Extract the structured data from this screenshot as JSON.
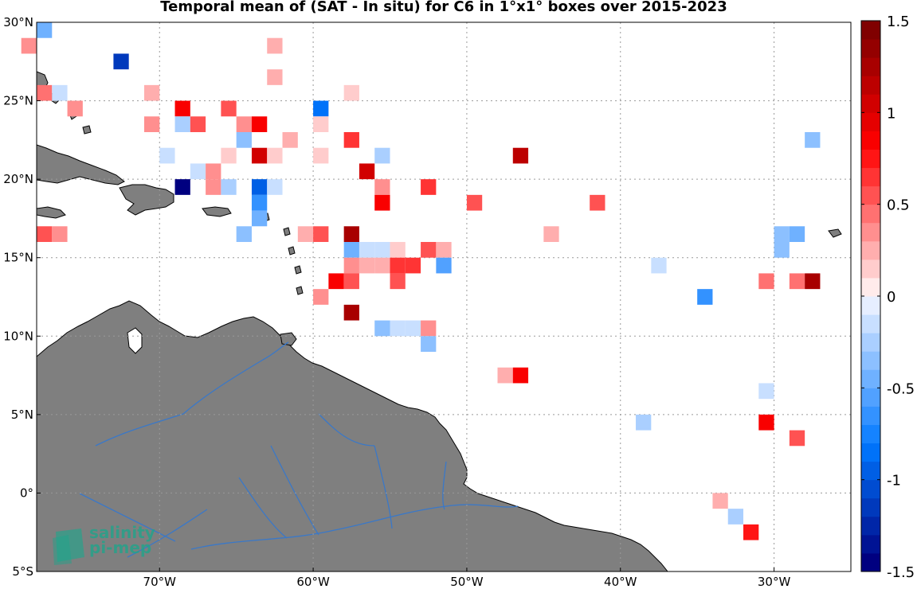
{
  "title": "Temporal mean of (SAT - In situ) for C6 in 1°x1° boxes over 2015-2023",
  "map": {
    "lon_range": [
      -78,
      -25
    ],
    "lat_range": [
      -5,
      30
    ],
    "lat_ticks": [
      {
        "value": 30,
        "label": "30°N"
      },
      {
        "value": 25,
        "label": "25°N"
      },
      {
        "value": 20,
        "label": "20°N"
      },
      {
        "value": 15,
        "label": "15°N"
      },
      {
        "value": 10,
        "label": "10°N"
      },
      {
        "value": 5,
        "label": "5°N"
      },
      {
        "value": 0,
        "label": "0°"
      },
      {
        "value": -5,
        "label": "5°S"
      }
    ],
    "lon_ticks": [
      {
        "value": -70,
        "label": "70°W"
      },
      {
        "value": -60,
        "label": "60°W"
      },
      {
        "value": -50,
        "label": "50°W"
      },
      {
        "value": -40,
        "label": "40°W"
      },
      {
        "value": -30,
        "label": "30°W"
      }
    ],
    "grid": true,
    "colors": {
      "land": "#7f7f7f",
      "rivers": "#3a78c8",
      "ocean": "#ffffff"
    }
  },
  "colorbar": {
    "range": [
      -1.5,
      1.5
    ],
    "levels": 30,
    "ticks": [
      {
        "value": 1.5,
        "label": "1.5"
      },
      {
        "value": 1,
        "label": "1"
      },
      {
        "value": 0.5,
        "label": "0.5"
      },
      {
        "value": 0,
        "label": "0"
      },
      {
        "value": -0.5,
        "label": "-0.5"
      },
      {
        "value": -1,
        "label": "-1"
      },
      {
        "value": -1.5,
        "label": "-1.5"
      }
    ]
  },
  "chart_data": {
    "type": "heatmap",
    "title": "Temporal mean of (SAT - In situ) for C6 in 1°x1° boxes over 2015-2023",
    "cell_size_deg": 1,
    "value_range": [
      -1.5,
      1.5
    ],
    "cells": [
      {
        "lon": -77.5,
        "lat": 29.5,
        "v": -0.45
      },
      {
        "lon": -78.5,
        "lat": 28.5,
        "v": 0.35
      },
      {
        "lon": -62.5,
        "lat": 28.5,
        "v": 0.25
      },
      {
        "lon": -72.5,
        "lat": 27.5,
        "v": -1.15
      },
      {
        "lon": -62.5,
        "lat": 26.5,
        "v": 0.25
      },
      {
        "lon": -77.5,
        "lat": 25.5,
        "v": 0.4
      },
      {
        "lon": -76.5,
        "lat": 25.5,
        "v": -0.1
      },
      {
        "lon": -70.5,
        "lat": 25.5,
        "v": 0.25
      },
      {
        "lon": -57.5,
        "lat": 25.5,
        "v": 0.15
      },
      {
        "lon": -75.5,
        "lat": 24.5,
        "v": 0.35
      },
      {
        "lon": -68.5,
        "lat": 24.5,
        "v": 0.85
      },
      {
        "lon": -65.5,
        "lat": 24.5,
        "v": 0.55
      },
      {
        "lon": -59.5,
        "lat": 24.5,
        "v": -0.8
      },
      {
        "lon": -70.5,
        "lat": 23.5,
        "v": 0.3
      },
      {
        "lon": -68.5,
        "lat": 23.5,
        "v": -0.25
      },
      {
        "lon": -67.5,
        "lat": 23.5,
        "v": 0.55
      },
      {
        "lon": -64.5,
        "lat": 23.5,
        "v": 0.35
      },
      {
        "lon": -63.5,
        "lat": 23.5,
        "v": 0.8
      },
      {
        "lon": -59.5,
        "lat": 23.5,
        "v": 0.15
      },
      {
        "lon": -64.5,
        "lat": 22.5,
        "v": -0.3
      },
      {
        "lon": -61.5,
        "lat": 22.5,
        "v": 0.2
      },
      {
        "lon": -57.5,
        "lat": 22.5,
        "v": 0.65
      },
      {
        "lon": -27.5,
        "lat": 22.5,
        "v": -0.35
      },
      {
        "lon": -69.5,
        "lat": 21.5,
        "v": -0.15
      },
      {
        "lon": -65.5,
        "lat": 21.5,
        "v": 0.15
      },
      {
        "lon": -63.5,
        "lat": 21.5,
        "v": 1.05
      },
      {
        "lon": -62.5,
        "lat": 21.5,
        "v": 0.15
      },
      {
        "lon": -59.5,
        "lat": 21.5,
        "v": 0.15
      },
      {
        "lon": -55.5,
        "lat": 21.5,
        "v": -0.25
      },
      {
        "lon": -46.5,
        "lat": 21.5,
        "v": 1.15
      },
      {
        "lon": -67.5,
        "lat": 20.5,
        "v": -0.15
      },
      {
        "lon": -66.5,
        "lat": 20.5,
        "v": 0.35
      },
      {
        "lon": -56.5,
        "lat": 20.5,
        "v": 1.05
      },
      {
        "lon": -68.5,
        "lat": 19.5,
        "v": -1.5
      },
      {
        "lon": -66.5,
        "lat": 19.5,
        "v": 0.3
      },
      {
        "lon": -65.5,
        "lat": 19.5,
        "v": -0.25
      },
      {
        "lon": -63.5,
        "lat": 19.5,
        "v": -0.9
      },
      {
        "lon": -62.5,
        "lat": 19.5,
        "v": -0.1
      },
      {
        "lon": -55.5,
        "lat": 19.5,
        "v": 0.3
      },
      {
        "lon": -52.5,
        "lat": 19.5,
        "v": 0.6
      },
      {
        "lon": -63.5,
        "lat": 18.5,
        "v": -0.65
      },
      {
        "lon": -55.5,
        "lat": 18.5,
        "v": 0.85
      },
      {
        "lon": -49.5,
        "lat": 18.5,
        "v": 0.55
      },
      {
        "lon": -41.5,
        "lat": 18.5,
        "v": 0.55
      },
      {
        "lon": -63.5,
        "lat": 17.5,
        "v": -0.45
      },
      {
        "lon": -77.5,
        "lat": 16.5,
        "v": 0.5
      },
      {
        "lon": -76.5,
        "lat": 16.5,
        "v": 0.35
      },
      {
        "lon": -64.5,
        "lat": 16.5,
        "v": -0.3
      },
      {
        "lon": -60.5,
        "lat": 16.5,
        "v": 0.2
      },
      {
        "lon": -59.5,
        "lat": 16.5,
        "v": 0.5
      },
      {
        "lon": -57.5,
        "lat": 16.5,
        "v": 1.3
      },
      {
        "lon": -44.5,
        "lat": 16.5,
        "v": 0.2
      },
      {
        "lon": -29.5,
        "lat": 16.5,
        "v": -0.3
      },
      {
        "lon": -28.5,
        "lat": 16.5,
        "v": -0.45
      },
      {
        "lon": -57.5,
        "lat": 15.5,
        "v": -0.5
      },
      {
        "lon": -56.5,
        "lat": 15.5,
        "v": -0.15
      },
      {
        "lon": -55.5,
        "lat": 15.5,
        "v": -0.15
      },
      {
        "lon": -54.5,
        "lat": 15.5,
        "v": 0.15
      },
      {
        "lon": -52.5,
        "lat": 15.5,
        "v": 0.55
      },
      {
        "lon": -51.5,
        "lat": 15.5,
        "v": 0.2
      },
      {
        "lon": -29.5,
        "lat": 15.5,
        "v": -0.3
      },
      {
        "lon": -57.5,
        "lat": 14.5,
        "v": 0.35
      },
      {
        "lon": -56.5,
        "lat": 14.5,
        "v": 0.2
      },
      {
        "lon": -55.5,
        "lat": 14.5,
        "v": 0.2
      },
      {
        "lon": -54.5,
        "lat": 14.5,
        "v": 0.6
      },
      {
        "lon": -53.5,
        "lat": 14.5,
        "v": 0.6
      },
      {
        "lon": -51.5,
        "lat": 14.5,
        "v": -0.55
      },
      {
        "lon": -37.5,
        "lat": 14.5,
        "v": -0.15
      },
      {
        "lon": -58.5,
        "lat": 13.5,
        "v": 0.9
      },
      {
        "lon": -57.5,
        "lat": 13.5,
        "v": 0.55
      },
      {
        "lon": -54.5,
        "lat": 13.5,
        "v": 0.55
      },
      {
        "lon": -30.5,
        "lat": 13.5,
        "v": 0.45
      },
      {
        "lon": -28.5,
        "lat": 13.5,
        "v": 0.45
      },
      {
        "lon": -27.5,
        "lat": 13.5,
        "v": 1.2
      },
      {
        "lon": -59.5,
        "lat": 12.5,
        "v": 0.35
      },
      {
        "lon": -34.5,
        "lat": 12.5,
        "v": -0.7
      },
      {
        "lon": -57.5,
        "lat": 11.5,
        "v": 1.3
      },
      {
        "lon": -55.5,
        "lat": 10.5,
        "v": -0.35
      },
      {
        "lon": -54.5,
        "lat": 10.5,
        "v": -0.2
      },
      {
        "lon": -53.5,
        "lat": 10.5,
        "v": -0.15
      },
      {
        "lon": -52.5,
        "lat": 10.5,
        "v": 0.35
      },
      {
        "lon": -52.5,
        "lat": 9.5,
        "v": -0.3
      },
      {
        "lon": -47.5,
        "lat": 7.5,
        "v": 0.25
      },
      {
        "lon": -46.5,
        "lat": 7.5,
        "v": 0.85
      },
      {
        "lon": -30.5,
        "lat": 6.5,
        "v": -0.1
      },
      {
        "lon": -38.5,
        "lat": 4.5,
        "v": -0.25
      },
      {
        "lon": -30.5,
        "lat": 4.5,
        "v": 0.85
      },
      {
        "lon": -28.5,
        "lat": 3.5,
        "v": 0.55
      },
      {
        "lon": -33.5,
        "lat": -0.5,
        "v": 0.2
      },
      {
        "lon": -32.5,
        "lat": -1.5,
        "v": -0.25
      },
      {
        "lon": -31.5,
        "lat": -2.5,
        "v": 0.7
      }
    ]
  },
  "logo": {
    "line1": "salinity",
    "line2": "pi-mep",
    "color": "#1aa68c"
  }
}
